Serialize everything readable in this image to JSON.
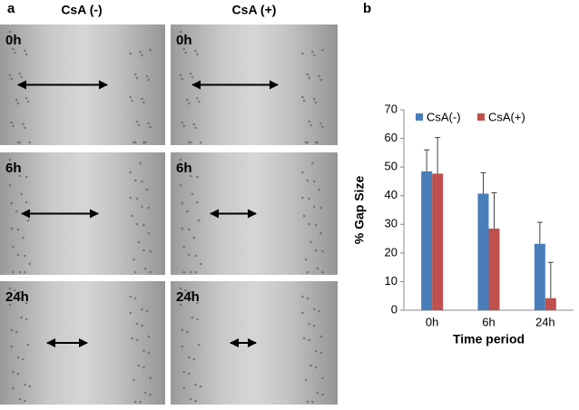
{
  "panel_a": {
    "label": "a",
    "columns": [
      "CsA (-)",
      "CsA (+)"
    ],
    "images": [
      [
        "0h",
        "0h"
      ],
      [
        "6h",
        "6h"
      ],
      [
        "24h",
        "24h"
      ]
    ]
  },
  "chart_data": {
    "type": "bar",
    "panel_label": "b",
    "categories": [
      "0h",
      "6h",
      "24h"
    ],
    "series": [
      {
        "name": "CsA(-)",
        "color": "#4a7ebb",
        "values": [
          48.5,
          40.7,
          23.2
        ],
        "errors": [
          7.5,
          7.3,
          7.5
        ]
      },
      {
        "name": "CsA(+)",
        "color": "#c0504d",
        "values": [
          47.7,
          28.5,
          4.2
        ],
        "errors": [
          12.6,
          12.5,
          12.5
        ]
      }
    ],
    "ylim": [
      0,
      70
    ],
    "yticks": [
      0,
      10,
      20,
      30,
      40,
      50,
      60,
      70
    ],
    "ylabel": "% Gap Size",
    "xlabel": "Time period",
    "legend": "top",
    "grid": false
  }
}
